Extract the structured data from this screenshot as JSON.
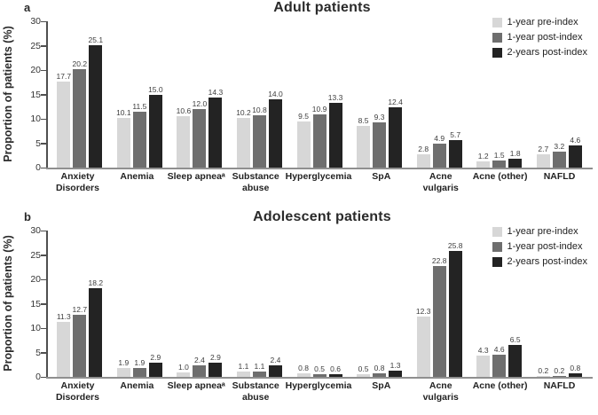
{
  "colors": {
    "series": [
      "#d7d7d7",
      "#6e6e6e",
      "#232323"
    ],
    "axis_line": "#4f4f4f",
    "baseline": "#8f8f8f"
  },
  "legend": [
    "1-year pre-index",
    "1-year post-index",
    "2-years post-index"
  ],
  "axis": {
    "ylabel": "Proportion of patients (%)",
    "yticks": [
      0,
      5,
      10,
      15,
      20,
      25,
      30
    ],
    "ylim": [
      0,
      30
    ]
  },
  "chart_data": [
    {
      "type": "bar",
      "panel_label": "a",
      "title": "Adult patients",
      "ylabel": "Proportion of patients (%)",
      "ylim": [
        0,
        30
      ],
      "grid": false,
      "legend_position": "top-right",
      "categories": [
        "Anxiety\nDisorders",
        "Anemia",
        "Sleep apneaᵃ",
        "Substance\nabuse",
        "Hyperglycemia",
        "SpA",
        "Acne vulgaris",
        "Acne (other)",
        "NAFLD"
      ],
      "series": [
        {
          "name": "1-year pre-index",
          "values": [
            17.7,
            10.1,
            10.6,
            10.2,
            9.5,
            8.5,
            2.8,
            1.2,
            2.7
          ]
        },
        {
          "name": "1-year post-index",
          "values": [
            20.2,
            11.5,
            12.0,
            10.8,
            10.9,
            9.3,
            4.9,
            1.5,
            3.2
          ]
        },
        {
          "name": "2-years post-index",
          "values": [
            25.1,
            15.0,
            14.3,
            14.0,
            13.3,
            12.4,
            5.7,
            1.8,
            4.6
          ]
        }
      ]
    },
    {
      "type": "bar",
      "panel_label": "b",
      "title": "Adolescent patients",
      "ylabel": "Proportion of patients (%)",
      "ylim": [
        0,
        30
      ],
      "grid": false,
      "legend_position": "top-right",
      "categories": [
        "Anxiety\nDisorders",
        "Anemia",
        "Sleep apneaᵃ",
        "Substance\nabuse",
        "Hyperglycemia",
        "SpA",
        "Acne vulgaris",
        "Acne (other)",
        "NAFLD"
      ],
      "series": [
        {
          "name": "1-year pre-index",
          "values": [
            11.3,
            1.9,
            1.0,
            1.1,
            0.8,
            0.5,
            12.3,
            4.3,
            0.2
          ]
        },
        {
          "name": "1-year post-index",
          "values": [
            12.7,
            1.9,
            2.4,
            1.1,
            0.5,
            0.8,
            22.8,
            4.6,
            0.2
          ]
        },
        {
          "name": "2-years post-index",
          "values": [
            18.2,
            2.9,
            2.9,
            2.4,
            0.6,
            1.3,
            25.8,
            6.5,
            0.8
          ]
        }
      ]
    }
  ]
}
